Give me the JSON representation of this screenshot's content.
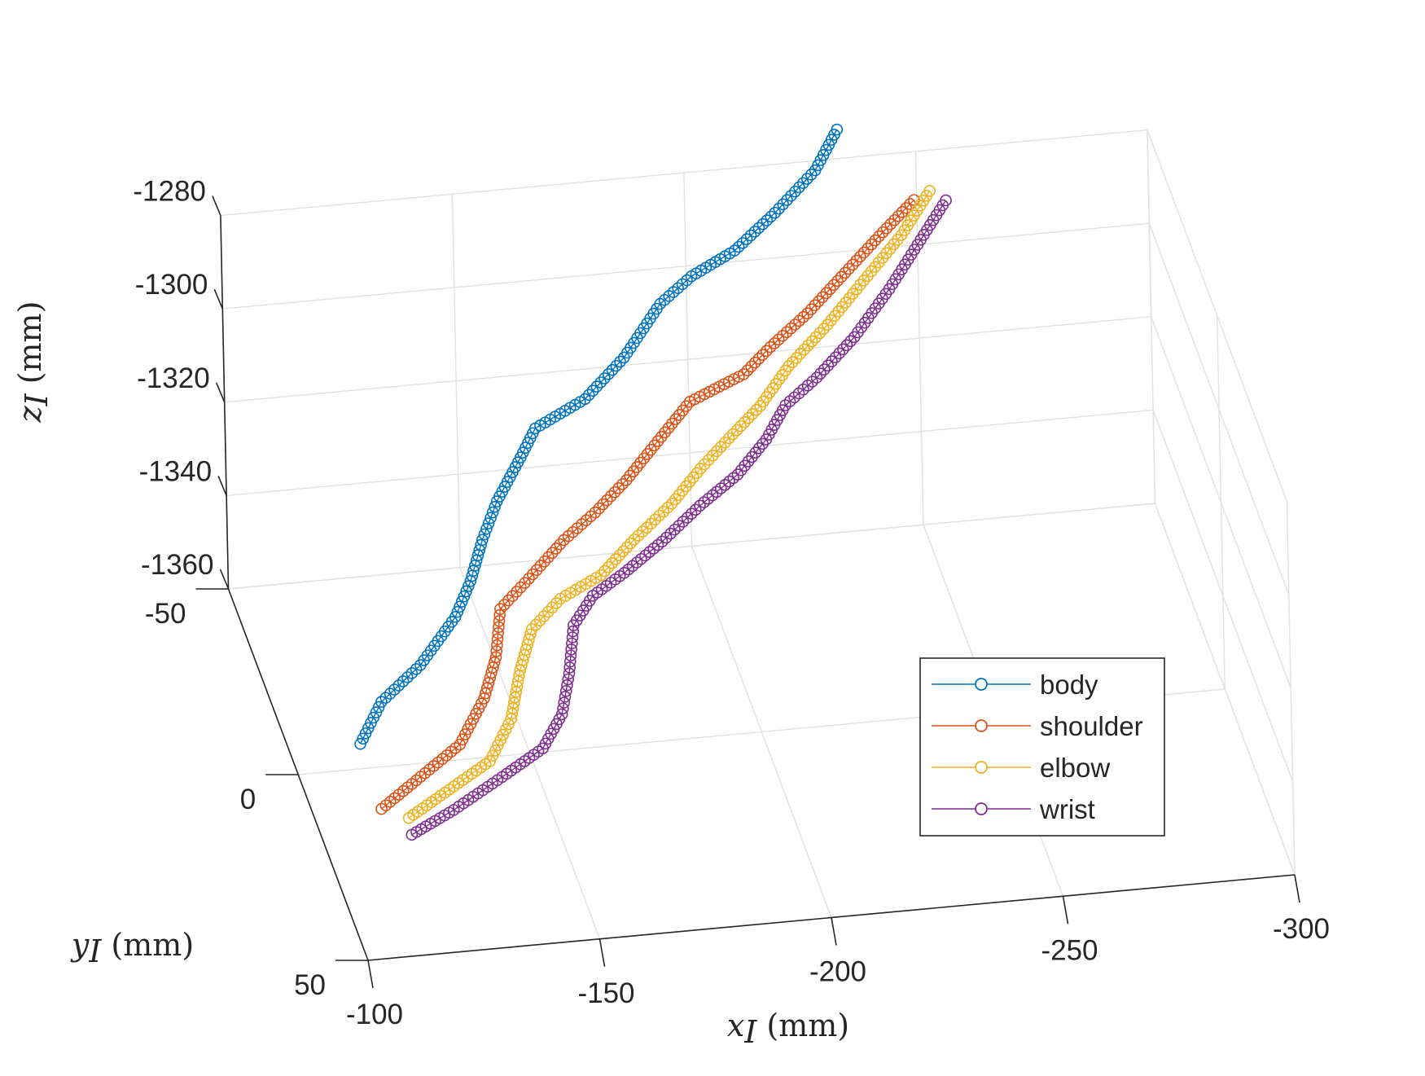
{
  "chart_data": {
    "type": "scatter",
    "subtype": "3d-line-with-circle-markers",
    "title": "",
    "axes": {
      "x": {
        "label_symbol": "x",
        "label_subscript": "I",
        "label_unit": "(mm)",
        "range": [
          -100,
          -300
        ],
        "ticks": [
          "-100",
          "-150",
          "-200",
          "-250",
          "-300"
        ]
      },
      "y": {
        "label_symbol": "y",
        "label_subscript": "I",
        "label_unit": "(mm)",
        "range": [
          -50,
          50
        ],
        "ticks": [
          "-50",
          "0",
          "50"
        ]
      },
      "z": {
        "label_symbol": "z",
        "label_subscript": "I",
        "label_unit": "(mm)",
        "range": [
          -1360,
          -1280
        ],
        "ticks": [
          "-1280",
          "-1300",
          "-1320",
          "-1340",
          "-1360"
        ]
      }
    },
    "grid": true,
    "legend_position": "lower-right",
    "series": [
      {
        "name": "body",
        "color": "#0072BD",
        "points": [
          [
            -105,
            30,
            -1330
          ],
          [
            -112,
            22,
            -1328
          ],
          [
            -122,
            17,
            -1325
          ],
          [
            -132,
            9,
            -1322
          ],
          [
            -138,
            0,
            -1322
          ],
          [
            -143,
            -8,
            -1320
          ],
          [
            -148,
            -14,
            -1317
          ],
          [
            -155,
            -20,
            -1313
          ],
          [
            -160,
            -26,
            -1312
          ],
          [
            -172,
            -30,
            -1310
          ],
          [
            -182,
            -35,
            -1306
          ],
          [
            -192,
            -42,
            -1301
          ],
          [
            -200,
            -46,
            -1299
          ],
          [
            -210,
            -48,
            -1296
          ],
          [
            -220,
            -52,
            -1292
          ],
          [
            -230,
            -56,
            -1287
          ],
          [
            -236,
            -60,
            -1282
          ]
        ]
      },
      {
        "name": "shoulder",
        "color": "#D95319",
        "points": [
          [
            -105,
            45,
            -1332
          ],
          [
            -115,
            40,
            -1330
          ],
          [
            -125,
            35,
            -1328
          ],
          [
            -133,
            26,
            -1326
          ],
          [
            -138,
            18,
            -1324
          ],
          [
            -142,
            8,
            -1322
          ],
          [
            -150,
            2,
            -1321
          ],
          [
            -160,
            -6,
            -1320
          ],
          [
            -168,
            -10,
            -1318
          ],
          [
            -176,
            -14,
            -1315
          ],
          [
            -186,
            -22,
            -1313
          ],
          [
            -194,
            -28,
            -1311
          ],
          [
            -206,
            -29,
            -1307
          ],
          [
            -213,
            -33,
            -1305
          ],
          [
            -222,
            -36,
            -1301
          ],
          [
            -232,
            -42,
            -1298
          ],
          [
            -242,
            -48,
            -1295
          ],
          [
            -250,
            -52,
            -1292
          ]
        ]
      },
      {
        "name": "elbow",
        "color": "#EDB120",
        "points": [
          [
            -110,
            48,
            -1332
          ],
          [
            -120,
            44,
            -1330
          ],
          [
            -130,
            40,
            -1328
          ],
          [
            -137,
            32,
            -1326
          ],
          [
            -142,
            22,
            -1324
          ],
          [
            -147,
            14,
            -1322
          ],
          [
            -155,
            8,
            -1321
          ],
          [
            -165,
            4,
            -1320
          ],
          [
            -174,
            -2,
            -1318
          ],
          [
            -184,
            -8,
            -1316
          ],
          [
            -192,
            -14,
            -1314
          ],
          [
            -200,
            -20,
            -1313
          ],
          [
            -208,
            -24,
            -1310
          ],
          [
            -216,
            -30,
            -1307
          ],
          [
            -226,
            -35,
            -1303
          ],
          [
            -236,
            -42,
            -1300
          ],
          [
            -246,
            -48,
            -1296
          ],
          [
            -254,
            -54,
            -1292
          ]
        ]
      },
      {
        "name": "wrist",
        "color": "#7E2F8E",
        "points": [
          [
            -110,
            50,
            -1334
          ],
          [
            -120,
            47,
            -1332
          ],
          [
            -132,
            42,
            -1330
          ],
          [
            -142,
            38,
            -1328
          ],
          [
            -148,
            32,
            -1326
          ],
          [
            -152,
            24,
            -1324
          ],
          [
            -156,
            14,
            -1322
          ],
          [
            -162,
            8,
            -1321
          ],
          [
            -170,
            4,
            -1320
          ],
          [
            -180,
            -2,
            -1319
          ],
          [
            -190,
            -8,
            -1317
          ],
          [
            -200,
            -14,
            -1316
          ],
          [
            -208,
            -20,
            -1314
          ],
          [
            -214,
            -26,
            -1312
          ],
          [
            -222,
            -30,
            -1310
          ],
          [
            -232,
            -36,
            -1307
          ],
          [
            -242,
            -44,
            -1304
          ],
          [
            -250,
            -50,
            -1300
          ],
          [
            -258,
            -56,
            -1296
          ]
        ]
      }
    ]
  }
}
